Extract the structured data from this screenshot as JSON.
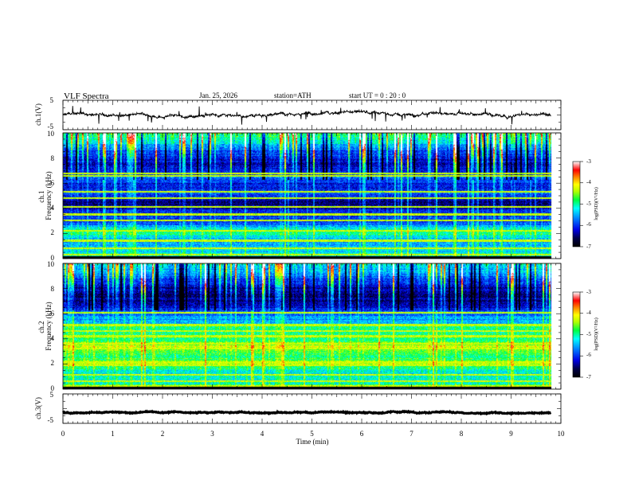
{
  "header": {
    "title": "VLF  Spectra",
    "date": "Jan. 25, 2026",
    "station": "station=ATH",
    "start": "start  UT  =    0 : 20 : 0"
  },
  "chart_data": [
    {
      "type": "line",
      "id": "ch1-waveform",
      "ylabel": "ch.1(V)",
      "ylim": [
        -5,
        5
      ],
      "yticks": [
        "5",
        "-5"
      ],
      "xlim": [
        0,
        10
      ],
      "series": [
        {
          "name": "ch.1 waveform",
          "mean": 0,
          "noise_amplitude": 0.6,
          "end_min": 9.8
        }
      ]
    },
    {
      "type": "heatmap",
      "id": "ch1-spectrogram",
      "ylabel": "ch.1 Frequency (kHz)",
      "ylim": [
        0,
        10
      ],
      "yticks": [
        "0",
        "2",
        "4",
        "6",
        "8",
        "10"
      ],
      "xlim": [
        0,
        9.8
      ],
      "zlim": [
        -7,
        -3
      ],
      "colorbar_label": "log(PSD)(V²/Hz)",
      "colorbar_ticks": [
        "-3",
        "-4",
        "-5",
        "-6",
        "-7"
      ],
      "background_profile": [
        {
          "f": 0.0,
          "v": -5.0
        },
        {
          "f": 0.5,
          "v": -5.3
        },
        {
          "f": 1.0,
          "v": -5.6
        },
        {
          "f": 1.5,
          "v": -5.6
        },
        {
          "f": 2.1,
          "v": -4.9
        },
        {
          "f": 2.8,
          "v": -5.9
        },
        {
          "f": 3.5,
          "v": -6.1
        },
        {
          "f": 4.5,
          "v": -6.6
        },
        {
          "f": 5.2,
          "v": -5.9
        },
        {
          "f": 5.8,
          "v": -6.3
        },
        {
          "f": 6.5,
          "v": -5.8
        },
        {
          "f": 7.5,
          "v": -6.5
        },
        {
          "f": 8.5,
          "v": -6.1
        },
        {
          "f": 9.3,
          "v": -5.5
        },
        {
          "f": 10.0,
          "v": -5.0
        }
      ],
      "tones_khz": [
        0.3,
        0.8,
        1.4,
        2.2,
        3.0,
        3.5,
        4.1,
        4.8,
        5.3,
        6.6,
        6.8
      ],
      "impulsive_noise": "vertical sferic streaks, strongest 6.5-10 kHz"
    },
    {
      "type": "heatmap",
      "id": "ch2-spectrogram",
      "ylabel": "ch.2 Frequency (kHz)",
      "ylim": [
        0,
        10
      ],
      "yticks": [
        "0",
        "2",
        "4",
        "6",
        "8",
        "10"
      ],
      "xlim": [
        0,
        9.8
      ],
      "zlim": [
        -7,
        -3
      ],
      "colorbar_label": "log(PSD)(V²/Hz)",
      "colorbar_ticks": [
        "-3",
        "-4",
        "-5",
        "-6",
        "-7"
      ],
      "background_profile": [
        {
          "f": 0.0,
          "v": -4.8
        },
        {
          "f": 0.6,
          "v": -5.2
        },
        {
          "f": 1.3,
          "v": -5.3
        },
        {
          "f": 2.0,
          "v": -4.6
        },
        {
          "f": 2.6,
          "v": -4.9
        },
        {
          "f": 3.4,
          "v": -4.4
        },
        {
          "f": 4.0,
          "v": -5.0
        },
        {
          "f": 4.7,
          "v": -4.9
        },
        {
          "f": 5.4,
          "v": -5.5
        },
        {
          "f": 6.2,
          "v": -6.0
        },
        {
          "f": 7.0,
          "v": -6.6
        },
        {
          "f": 8.0,
          "v": -6.5
        },
        {
          "f": 9.0,
          "v": -6.0
        },
        {
          "f": 10.0,
          "v": -5.4
        }
      ],
      "tones_khz": [
        0.2,
        0.6,
        1.1,
        1.9,
        2.1,
        3.2,
        3.6,
        4.2,
        4.6,
        5.1,
        6.1
      ],
      "impulsive_noise": "vertical sferic streaks, strongest 6.5-10 kHz"
    },
    {
      "type": "line",
      "id": "ch3-waveform",
      "ylabel": "ch.3(V)",
      "ylim": [
        -5,
        5
      ],
      "yticks": [
        "5",
        "-5"
      ],
      "xlim": [
        0,
        10
      ],
      "xlabel": "Time  (min)",
      "xticks": [
        "0",
        "1",
        "2",
        "3",
        "4",
        "5",
        "6",
        "7",
        "8",
        "9",
        "10"
      ],
      "series": [
        {
          "name": "ch.3 waveform",
          "mean": -1.3,
          "noise_amplitude": 0.2,
          "end_min": 9.8
        }
      ]
    }
  ],
  "colors": {
    "axis": "#000000",
    "waveform": "#000000",
    "colormap": [
      "#000000",
      "#00004a",
      "#0000e6",
      "#0080ff",
      "#00ffff",
      "#00ff40",
      "#b4ff00",
      "#ffff00",
      "#ff8000",
      "#ff0000",
      "#ffffff"
    ]
  }
}
